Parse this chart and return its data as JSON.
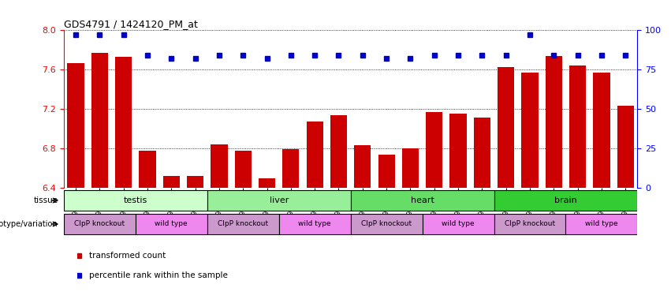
{
  "title": "GDS4791 / 1424120_PM_at",
  "samples": [
    "GSM988357",
    "GSM988358",
    "GSM988359",
    "GSM988360",
    "GSM988361",
    "GSM988362",
    "GSM988363",
    "GSM988364",
    "GSM988365",
    "GSM988366",
    "GSM988367",
    "GSM988368",
    "GSM988381",
    "GSM988382",
    "GSM988383",
    "GSM988384",
    "GSM988385",
    "GSM988386",
    "GSM988375",
    "GSM988376",
    "GSM988377",
    "GSM988378",
    "GSM988379",
    "GSM988380"
  ],
  "bar_values": [
    7.67,
    7.77,
    7.73,
    6.78,
    6.52,
    6.52,
    6.84,
    6.78,
    6.5,
    6.79,
    7.07,
    7.14,
    6.83,
    6.74,
    6.8,
    7.17,
    7.15,
    7.11,
    7.63,
    7.57,
    7.74,
    7.64,
    7.57,
    7.23
  ],
  "percentile_values": [
    97,
    97,
    97,
    84,
    82,
    82,
    84,
    84,
    82,
    84,
    84,
    84,
    84,
    82,
    82,
    84,
    84,
    84,
    84,
    97,
    84,
    84,
    84,
    84
  ],
  "ylim_left": [
    6.4,
    8.0
  ],
  "ylim_right": [
    0,
    100
  ],
  "yticks_left": [
    6.4,
    6.8,
    7.2,
    7.6,
    8.0
  ],
  "yticks_right": [
    0,
    25,
    50,
    75,
    100
  ],
  "bar_color": "#cc0000",
  "dot_color": "#0000cc",
  "tissue_groups": [
    {
      "label": "testis",
      "start": 0,
      "end": 6,
      "color": "#ccffcc"
    },
    {
      "label": "liver",
      "start": 6,
      "end": 12,
      "color": "#99ee99"
    },
    {
      "label": "heart",
      "start": 12,
      "end": 18,
      "color": "#66dd66"
    },
    {
      "label": "brain",
      "start": 18,
      "end": 24,
      "color": "#33cc33"
    }
  ],
  "genotype_groups": [
    {
      "label": "ClpP knockout",
      "start": 0,
      "end": 3,
      "color": "#cc99cc"
    },
    {
      "label": "wild type",
      "start": 3,
      "end": 6,
      "color": "#ee88ee"
    },
    {
      "label": "ClpP knockout",
      "start": 6,
      "end": 9,
      "color": "#cc99cc"
    },
    {
      "label": "wild type",
      "start": 9,
      "end": 12,
      "color": "#ee88ee"
    },
    {
      "label": "ClpP knockout",
      "start": 12,
      "end": 15,
      "color": "#cc99cc"
    },
    {
      "label": "wild type",
      "start": 15,
      "end": 18,
      "color": "#ee88ee"
    },
    {
      "label": "ClpP knockout",
      "start": 18,
      "end": 21,
      "color": "#cc99cc"
    },
    {
      "label": "wild type",
      "start": 21,
      "end": 24,
      "color": "#ee88ee"
    }
  ],
  "legend_items": [
    {
      "label": "transformed count",
      "color": "#cc0000"
    },
    {
      "label": "percentile rank within the sample",
      "color": "#0000cc"
    }
  ],
  "fig_width": 8.51,
  "fig_height": 3.84,
  "dpi": 100
}
